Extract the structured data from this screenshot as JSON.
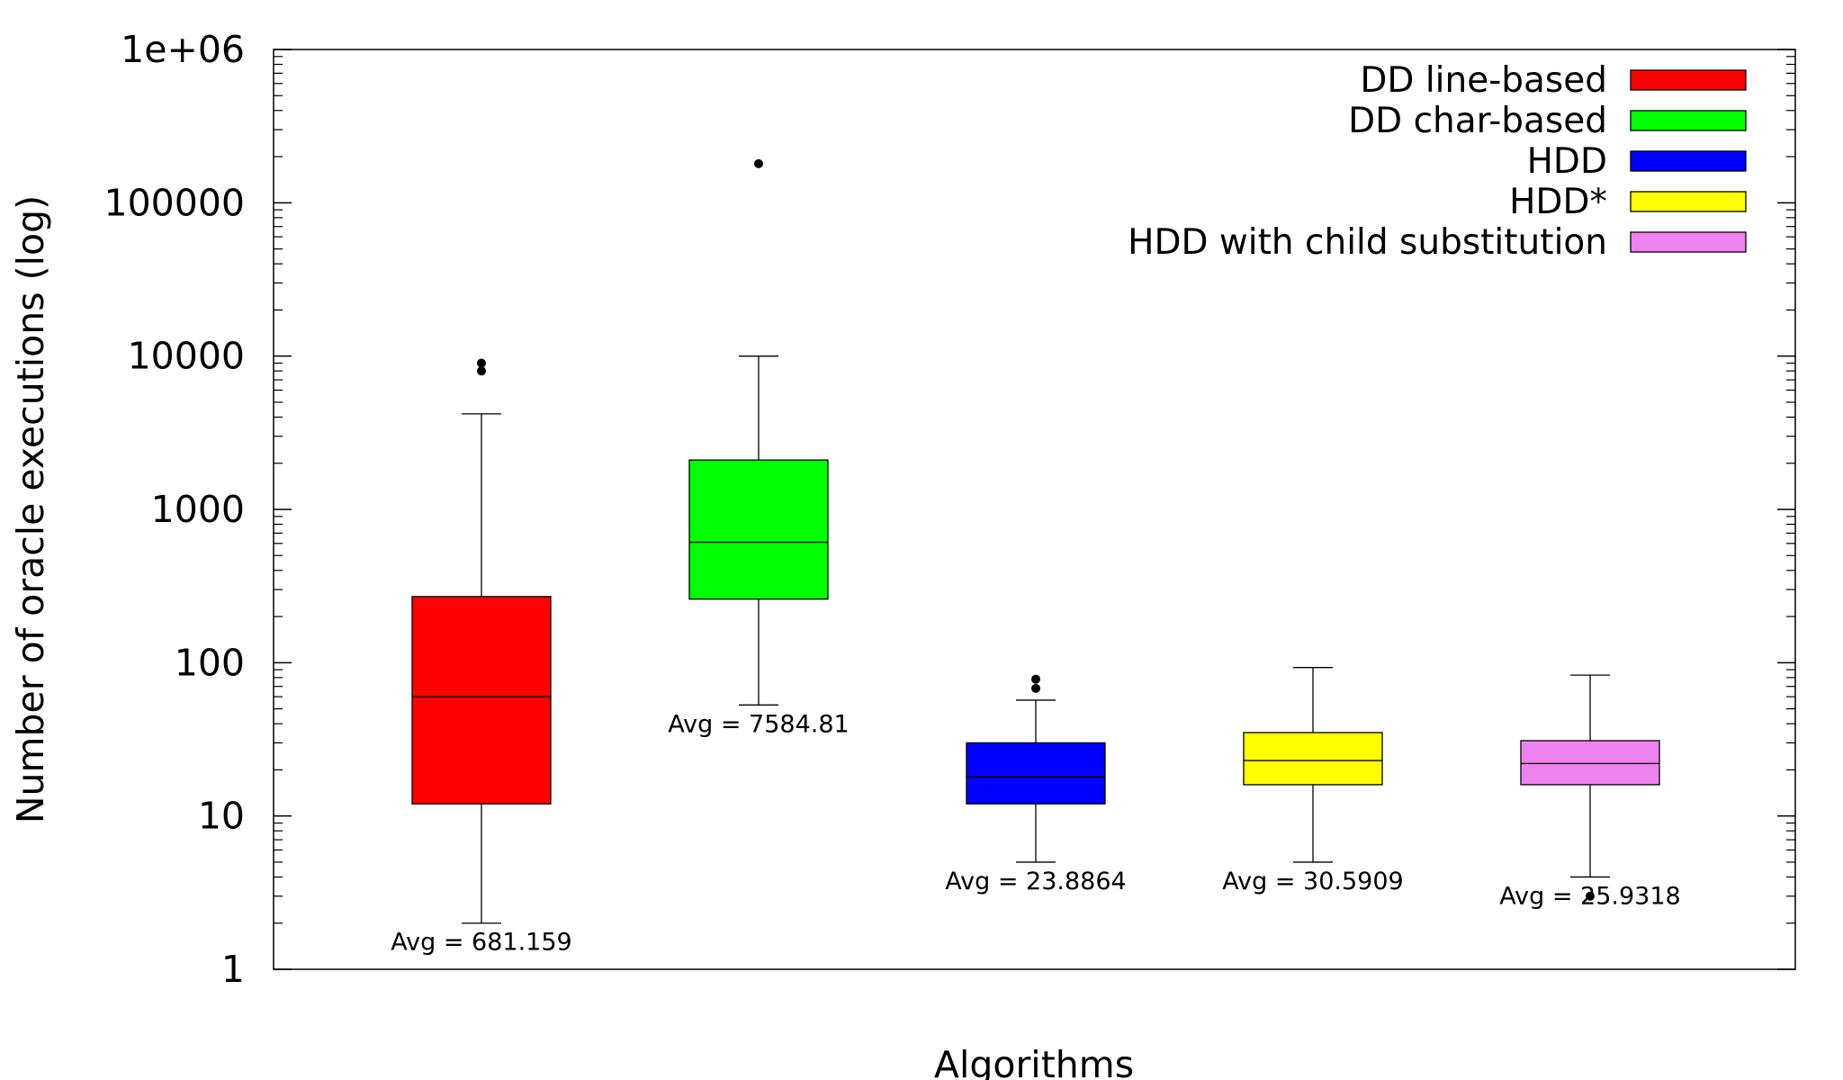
{
  "chart_data": {
    "type": "box",
    "ylabel": "Number of oracle executions (log)",
    "xlabel": "Algorithms",
    "yscale": "log",
    "ylim": [
      1,
      1000000
    ],
    "yticks": [
      {
        "value": 1,
        "label": "1"
      },
      {
        "value": 10,
        "label": "10"
      },
      {
        "value": 100,
        "label": "100"
      },
      {
        "value": 1000,
        "label": "1000"
      },
      {
        "value": 10000,
        "label": "10000"
      },
      {
        "value": 100000,
        "label": "100000"
      },
      {
        "value": 1000000,
        "label": "1e+06"
      }
    ],
    "legend_position": "top-right",
    "series": [
      {
        "name": "DD line-based",
        "color": "#ff0000",
        "q1": 12,
        "median": 60,
        "q3": 270,
        "whisker_low": 2,
        "whisker_high": 4200,
        "outliers": [
          8000,
          9000
        ],
        "avg_label": "Avg = 681.159"
      },
      {
        "name": "DD char-based",
        "color": "#00ff00",
        "q1": 260,
        "median": 610,
        "q3": 2100,
        "whisker_low": 53,
        "whisker_high": 10000,
        "outliers": [
          180000
        ],
        "avg_label": "Avg = 7584.81"
      },
      {
        "name": "HDD",
        "color": "#0000ff",
        "q1": 12,
        "median": 18,
        "q3": 30,
        "whisker_low": 5,
        "whisker_high": 57,
        "outliers": [
          68,
          78
        ],
        "avg_label": "Avg = 23.8864"
      },
      {
        "name": "HDD*",
        "color": "#ffff00",
        "q1": 16,
        "median": 23,
        "q3": 35,
        "whisker_low": 5,
        "whisker_high": 93,
        "outliers": [],
        "avg_label": "Avg = 30.5909"
      },
      {
        "name": "HDD with child substitution",
        "color": "#ee82ee",
        "q1": 16,
        "median": 22,
        "q3": 31,
        "whisker_low": 4,
        "whisker_high": 83,
        "outliers": [
          3
        ],
        "avg_label": "Avg = 25.9318"
      }
    ]
  }
}
